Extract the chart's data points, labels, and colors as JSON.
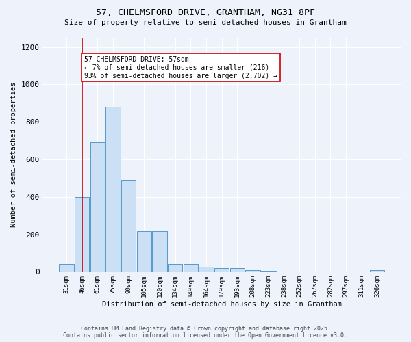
{
  "title1": "57, CHELMSFORD DRIVE, GRANTHAM, NG31 8PF",
  "title2": "Size of property relative to semi-detached houses in Grantham",
  "xlabel": "Distribution of semi-detached houses by size in Grantham",
  "ylabel": "Number of semi-detached properties",
  "bar_labels": [
    "31sqm",
    "46sqm",
    "61sqm",
    "75sqm",
    "90sqm",
    "105sqm",
    "120sqm",
    "134sqm",
    "149sqm",
    "164sqm",
    "179sqm",
    "193sqm",
    "208sqm",
    "223sqm",
    "238sqm",
    "252sqm",
    "267sqm",
    "282sqm",
    "297sqm",
    "311sqm",
    "326sqm"
  ],
  "bar_heights": [
    40,
    400,
    690,
    880,
    490,
    215,
    215,
    40,
    40,
    25,
    20,
    20,
    10,
    5,
    2,
    2,
    2,
    2,
    2,
    2,
    10
  ],
  "bar_color": "#cce0f5",
  "bar_edge_color": "#5599cc",
  "property_bar_index": 1,
  "annotation_title": "57 CHELMSFORD DRIVE: 57sqm",
  "annotation_line1": "← 7% of semi-detached houses are smaller (216)",
  "annotation_line2": "93% of semi-detached houses are larger (2,702) →",
  "vline_color": "#cc0000",
  "annotation_box_edge_color": "#cc0000",
  "annotation_box_face_color": "#ffffff",
  "background_color": "#eef2fa",
  "ylim": [
    0,
    1250
  ],
  "yticks": [
    0,
    200,
    400,
    600,
    800,
    1000,
    1200
  ],
  "footer1": "Contains HM Land Registry data © Crown copyright and database right 2025.",
  "footer2": "Contains public sector information licensed under the Open Government Licence v3.0."
}
